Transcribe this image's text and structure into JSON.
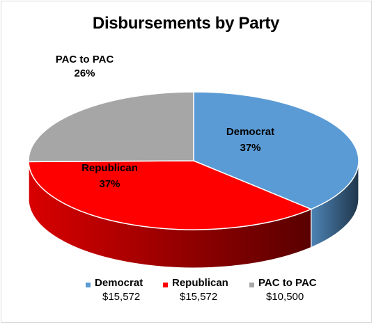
{
  "chart_data": {
    "type": "pie",
    "style": "3d",
    "title": "Disbursements by Party",
    "categories": [
      "Democrat",
      "Republican",
      "PAC to PAC"
    ],
    "values": [
      15572,
      15572,
      10500
    ],
    "value_labels": [
      "$15,572",
      "$15,572",
      "$10,500"
    ],
    "percent_labels": [
      "37%",
      "37%",
      "26%"
    ],
    "colors": [
      "#5b9bd5",
      "#ff0000",
      "#a6a6a6"
    ],
    "legend_position": "bottom",
    "start": "top",
    "direction": "clockwise"
  }
}
